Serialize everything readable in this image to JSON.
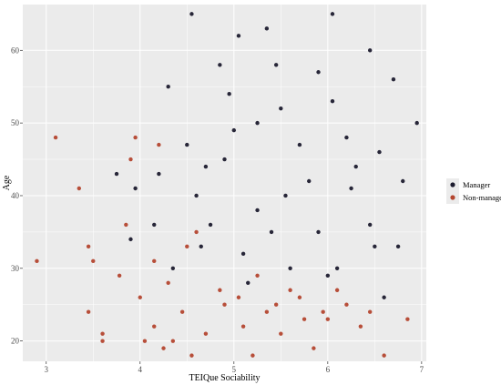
{
  "chart_data": {
    "type": "scatter",
    "title": "",
    "xlabel": "TEIQue Sociability",
    "ylabel": "Age",
    "xlim": [
      2.75,
      7.05
    ],
    "ylim": [
      17.2,
      66.3
    ],
    "xticks": [
      3,
      4,
      5,
      6,
      7
    ],
    "yticks": [
      20,
      30,
      40,
      50,
      60
    ],
    "grid": true,
    "legend_position": "right",
    "background": "#ebebeb",
    "series": [
      {
        "name": "Manager",
        "color": "#1c1b2e",
        "points": [
          [
            4.55,
            65
          ],
          [
            6.05,
            65
          ],
          [
            5.05,
            62
          ],
          [
            5.35,
            63
          ],
          [
            3.75,
            43
          ],
          [
            3.95,
            41
          ],
          [
            4.2,
            43
          ],
          [
            4.3,
            55
          ],
          [
            4.5,
            47
          ],
          [
            4.35,
            30
          ],
          [
            4.75,
            36
          ],
          [
            4.9,
            45
          ],
          [
            5.25,
            38
          ],
          [
            5.5,
            52
          ],
          [
            5.8,
            42
          ],
          [
            6.2,
            48
          ],
          [
            6.45,
            36
          ],
          [
            6.7,
            56
          ],
          [
            6.8,
            42
          ],
          [
            6.95,
            50
          ],
          [
            6.6,
            26
          ],
          [
            5.4,
            35
          ],
          [
            6.1,
            30
          ],
          [
            3.9,
            34
          ],
          [
            4.15,
            36
          ],
          [
            4.65,
            33
          ],
          [
            6.45,
            60
          ],
          [
            6.5,
            33
          ],
          [
            6.0,
            29
          ],
          [
            5.15,
            28
          ],
          [
            5.9,
            57
          ],
          [
            5.7,
            47
          ],
          [
            5.0,
            49
          ],
          [
            4.85,
            58
          ],
          [
            6.3,
            44
          ],
          [
            5.55,
            40
          ],
          [
            4.6,
            40
          ],
          [
            5.25,
            50
          ],
          [
            5.9,
            35
          ],
          [
            6.75,
            33
          ],
          [
            5.6,
            30
          ],
          [
            5.1,
            32
          ],
          [
            6.25,
            41
          ],
          [
            4.95,
            54
          ],
          [
            5.45,
            58
          ],
          [
            6.05,
            53
          ],
          [
            4.7,
            44
          ],
          [
            6.55,
            46
          ]
        ]
      },
      {
        "name": "Non-manager",
        "color": "#b4462f",
        "points": [
          [
            2.9,
            31
          ],
          [
            3.1,
            48
          ],
          [
            3.35,
            41
          ],
          [
            3.45,
            33
          ],
          [
            3.5,
            31
          ],
          [
            3.6,
            21
          ],
          [
            3.6,
            20
          ],
          [
            3.78,
            29
          ],
          [
            3.85,
            36
          ],
          [
            3.9,
            45
          ],
          [
            3.95,
            48
          ],
          [
            4.0,
            26
          ],
          [
            4.2,
            47
          ],
          [
            4.15,
            22
          ],
          [
            4.25,
            19
          ],
          [
            4.35,
            20
          ],
          [
            4.45,
            24
          ],
          [
            4.55,
            18
          ],
          [
            4.7,
            21
          ],
          [
            4.9,
            25
          ],
          [
            5.1,
            22
          ],
          [
            5.2,
            18
          ],
          [
            5.35,
            24
          ],
          [
            5.5,
            21
          ],
          [
            5.7,
            26
          ],
          [
            5.85,
            19
          ],
          [
            6.0,
            23
          ],
          [
            6.2,
            25
          ],
          [
            6.35,
            22
          ],
          [
            6.6,
            18
          ],
          [
            6.85,
            23
          ],
          [
            4.6,
            35
          ],
          [
            4.3,
            28
          ],
          [
            5.6,
            27
          ],
          [
            5.95,
            24
          ],
          [
            4.85,
            27
          ],
          [
            5.25,
            29
          ],
          [
            4.15,
            31
          ],
          [
            4.5,
            33
          ],
          [
            6.1,
            27
          ],
          [
            5.45,
            25
          ],
          [
            5.05,
            26
          ],
          [
            3.45,
            24
          ],
          [
            4.05,
            20
          ],
          [
            5.75,
            23
          ],
          [
            6.45,
            24
          ]
        ]
      }
    ]
  }
}
